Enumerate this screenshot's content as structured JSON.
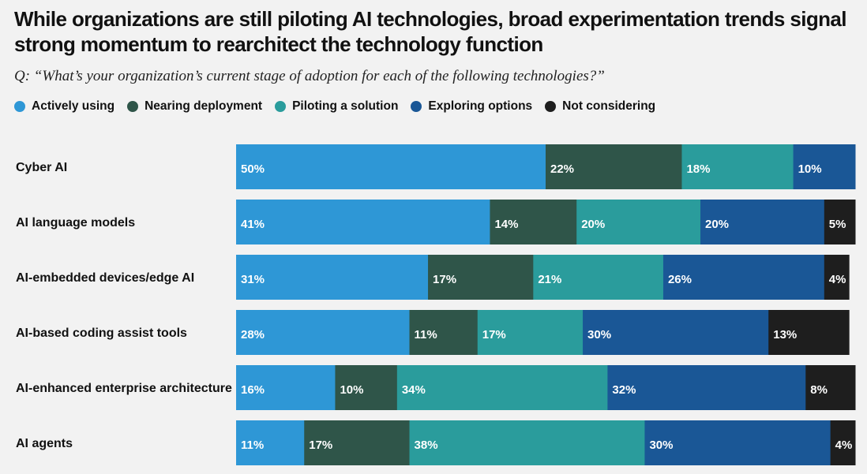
{
  "chart_data": {
    "type": "bar",
    "orientation": "horizontal",
    "stacked": true,
    "title": "While organizations are still piloting AI technologies, broad experimentation trends signal strong momentum to rearchitect the technology function",
    "subtitle": "Q: “What’s your organization’s current stage of adoption for each of the following technologies?”",
    "categories": [
      "Cyber AI",
      "AI language models",
      "AI-embedded devices/edge AI",
      "AI-based coding assist tools",
      "AI-enhanced enterprise architecture",
      "AI agents"
    ],
    "series": [
      {
        "name": "Actively using",
        "color": "#2e97d6",
        "values": [
          50,
          41,
          31,
          28,
          16,
          11
        ]
      },
      {
        "name": "Nearing deployment",
        "color": "#2f5549",
        "values": [
          22,
          14,
          17,
          11,
          10,
          17
        ]
      },
      {
        "name": "Piloting a solution",
        "color": "#2a9c9c",
        "values": [
          18,
          20,
          21,
          17,
          34,
          38
        ]
      },
      {
        "name": "Exploring options",
        "color": "#1a5796",
        "values": [
          10,
          20,
          26,
          30,
          32,
          30
        ]
      },
      {
        "name": "Not considering",
        "color": "#1e1e1e",
        "values": [
          0,
          5,
          4,
          13,
          8,
          4
        ]
      }
    ],
    "value_suffix": "%",
    "xlim": [
      0,
      100
    ],
    "legend_position": "top-left",
    "grid": false
  }
}
